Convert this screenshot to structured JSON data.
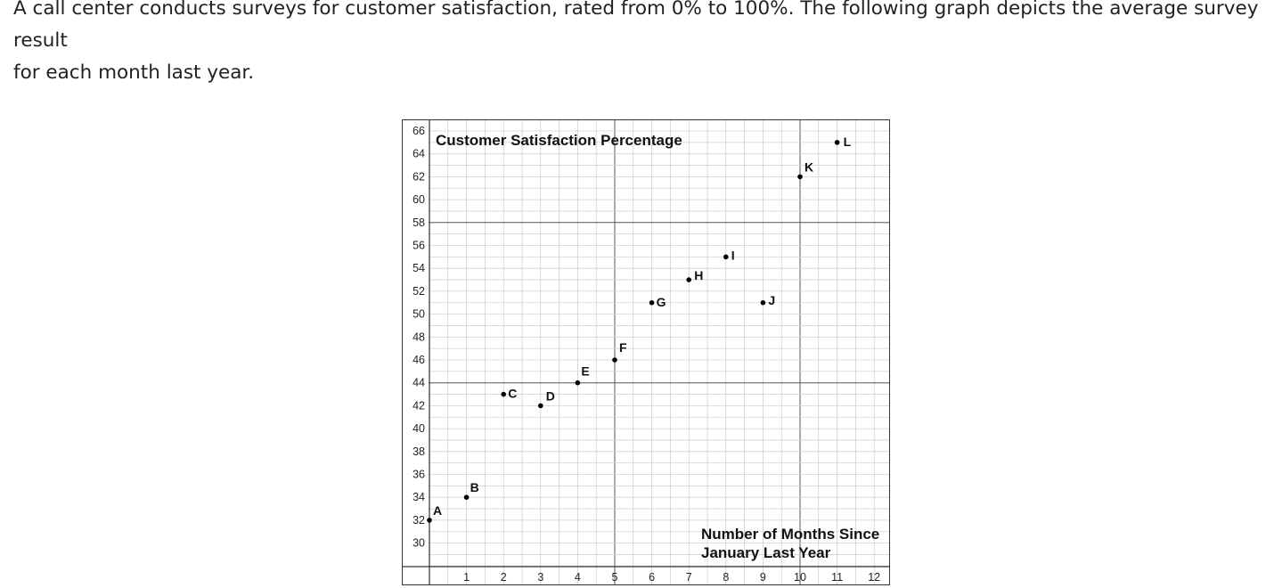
{
  "question": {
    "line1": "A call center conducts surveys for customer satisfaction, rated from 0% to 100%. The following graph depicts the average survey result",
    "line2": "for each month last year."
  },
  "chart_data": {
    "type": "scatter",
    "title": "Customer Satisfaction Percentage",
    "xlabel": [
      "Number of Months Since",
      "January Last Year"
    ],
    "ylabel": "",
    "xlim": [
      0,
      12
    ],
    "ylim": [
      28,
      66
    ],
    "x_ticks": [
      1,
      2,
      3,
      4,
      5,
      6,
      7,
      8,
      9,
      10,
      11,
      12
    ],
    "y_ticks": [
      30,
      32,
      34,
      36,
      38,
      40,
      42,
      44,
      46,
      48,
      50,
      52,
      54,
      56,
      58,
      60,
      62,
      64,
      66
    ],
    "grid": true,
    "points": [
      {
        "label": "A",
        "x": 0,
        "y": 32
      },
      {
        "label": "B",
        "x": 1,
        "y": 34
      },
      {
        "label": "C",
        "x": 2,
        "y": 43
      },
      {
        "label": "D",
        "x": 3,
        "y": 42
      },
      {
        "label": "E",
        "x": 4,
        "y": 44
      },
      {
        "label": "F",
        "x": 5,
        "y": 46
      },
      {
        "label": "G",
        "x": 6,
        "y": 51
      },
      {
        "label": "H",
        "x": 7,
        "y": 53
      },
      {
        "label": "I",
        "x": 8,
        "y": 55
      },
      {
        "label": "J",
        "x": 9,
        "y": 51
      },
      {
        "label": "K",
        "x": 10,
        "y": 62
      },
      {
        "label": "L",
        "x": 11,
        "y": 65
      }
    ]
  }
}
